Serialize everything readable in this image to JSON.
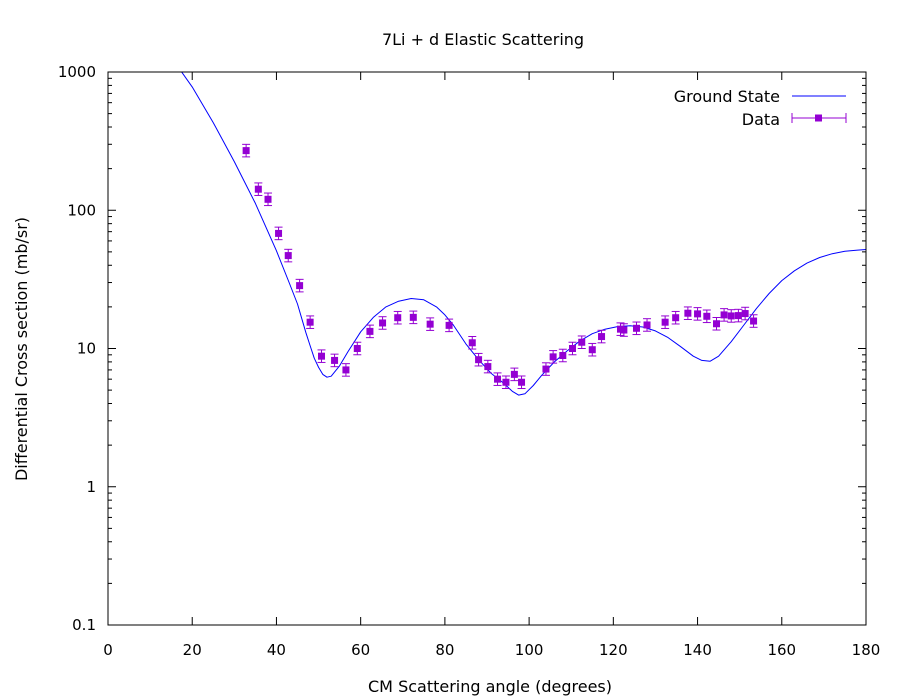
{
  "chart_data": {
    "type": "scatter",
    "title": "7Li + d Elastic Scattering",
    "xlabel": "CM Scattering angle (degrees)",
    "ylabel": "Differential Cross section (mb/sr)",
    "xlim": [
      0,
      180
    ],
    "ylim": [
      0.1,
      1000
    ],
    "yscale": "log",
    "grid": false,
    "legend_position": "top-right",
    "x_ticks": [
      "0",
      "20",
      "40",
      "60",
      "80",
      "100",
      "120",
      "140",
      "160",
      "180"
    ],
    "y_ticks": [
      "0.1",
      "1",
      "10",
      "100",
      "1000"
    ],
    "series": [
      {
        "name": "Ground State",
        "kind": "line",
        "color": "#0000ff",
        "x": [
          17,
          20,
          25,
          30,
          35,
          40,
          43,
          45,
          47,
          48,
          49,
          50,
          51,
          52,
          53,
          55,
          57,
          60,
          63,
          66,
          69,
          72,
          75,
          78,
          80,
          82,
          85,
          88,
          91,
          94,
          96,
          97.5,
          99,
          101,
          103,
          106,
          109,
          112,
          115,
          118,
          121,
          124,
          127,
          130,
          133,
          136,
          139,
          141,
          143,
          145,
          148,
          151,
          154,
          157,
          160,
          163,
          166,
          169,
          172,
          175,
          178,
          180
        ],
        "y": [
          1050,
          780,
          430,
          225,
          112,
          51,
          30,
          21,
          13,
          10.5,
          8.5,
          7.3,
          6.5,
          6.2,
          6.3,
          7.5,
          9.5,
          13.2,
          16.8,
          20,
          22,
          23,
          22.5,
          20,
          17.5,
          14.8,
          10.8,
          8.3,
          6.6,
          5.6,
          4.9,
          4.6,
          4.7,
          5.4,
          6.4,
          8,
          9.6,
          11.3,
          12.8,
          13.8,
          14.4,
          14.6,
          14.3,
          13.4,
          12,
          10.3,
          8.8,
          8.2,
          8.1,
          8.8,
          11.2,
          14.8,
          19.5,
          25,
          31,
          36.5,
          41.5,
          45.5,
          48.5,
          50.5,
          51.5,
          52
        ]
      },
      {
        "name": "Data",
        "kind": "points-errorbars",
        "color": "#9400d3",
        "x": [
          32.8,
          35.7,
          38,
          40.5,
          42.8,
          45.5,
          48,
          50.7,
          53.8,
          56.5,
          59.2,
          62.2,
          65.2,
          68.8,
          72.5,
          76.5,
          81,
          86.5,
          88,
          90.2,
          92.5,
          94.5,
          96.5,
          98.2,
          104,
          105.7,
          108,
          110.3,
          112.5,
          115,
          117.2,
          121.7,
          122.5,
          125.5,
          128,
          132.3,
          134.8,
          137.7,
          140,
          142.2,
          144.5,
          146.3,
          148,
          149.7,
          151.3,
          153.3
        ],
        "y": [
          270,
          142,
          120,
          68,
          47,
          28.5,
          15.5,
          8.8,
          8.2,
          7,
          10,
          13.3,
          15.3,
          16.7,
          16.8,
          15,
          14.7,
          11,
          8.3,
          7.4,
          6,
          5.7,
          6.5,
          5.7,
          7.1,
          8.7,
          8.9,
          10,
          11.1,
          9.8,
          12.2,
          13.8,
          13.6,
          14,
          14.8,
          15.5,
          16.7,
          18,
          17.8,
          17.1,
          15.1,
          17.5,
          17.2,
          17.3,
          17.9,
          15.8
        ]
      }
    ]
  }
}
